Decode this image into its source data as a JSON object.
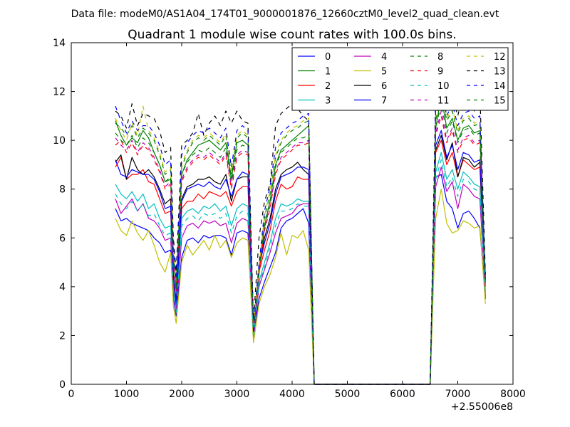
{
  "figure": {
    "suptitle": "Data file: modeM0/AS1A04_174T01_9000001876_12660cztM0_level2_quad_clean.evt"
  },
  "chart_data": {
    "type": "line",
    "title": "Quadrant 1 module wise count rates with 100.0s bins.",
    "xlabel": "",
    "ylabel": "",
    "x_offset_label": "+2.55006e8",
    "xlim": [
      0,
      8000
    ],
    "ylim": [
      0,
      14
    ],
    "xticks": [
      0,
      1000,
      2000,
      3000,
      4000,
      5000,
      6000,
      7000,
      8000
    ],
    "yticks": [
      0,
      2,
      4,
      6,
      8,
      10,
      12,
      14
    ],
    "grid": false,
    "legend": {
      "position": "top-right",
      "columns": 4
    },
    "x": [
      800,
      900,
      1000,
      1100,
      1200,
      1300,
      1400,
      1500,
      1600,
      1700,
      1800,
      1850,
      1900,
      2000,
      2100,
      2200,
      2300,
      2400,
      2500,
      2600,
      2700,
      2800,
      2900,
      3000,
      3100,
      3200,
      3300,
      3400,
      3500,
      3600,
      3700,
      3800,
      3900,
      4000,
      4100,
      4200,
      4300,
      4400,
      6500,
      6600,
      6700,
      6800,
      6900,
      7000,
      7100,
      7200,
      7300,
      7400,
      7500
    ],
    "series": [
      {
        "name": "0",
        "color": "#0000ff",
        "dash": "solid",
        "values": [
          7.2,
          6.7,
          6.8,
          6.6,
          6.5,
          6.4,
          6.3,
          6.0,
          5.8,
          5.4,
          5.5,
          3.5,
          2.8,
          5.2,
          5.9,
          6.0,
          5.8,
          6.1,
          6.0,
          6.1,
          6.1,
          6.0,
          5.3,
          6.2,
          6.3,
          6.2,
          2.0,
          3.5,
          4.2,
          4.8,
          5.4,
          6.4,
          6.7,
          6.8,
          7.0,
          7.2,
          6.6,
          0,
          0,
          8.5,
          8.6,
          7.5,
          7.2,
          6.4,
          7.0,
          7.1,
          6.8,
          6.4,
          3.5
        ]
      },
      {
        "name": "1",
        "color": "#008000",
        "dash": "solid",
        "values": [
          10.8,
          10.2,
          9.8,
          10.1,
          9.9,
          10.4,
          10.1,
          9.5,
          9.0,
          8.3,
          8.4,
          5.2,
          3.9,
          8.6,
          9.2,
          9.5,
          9.8,
          9.9,
          10.0,
          9.8,
          9.6,
          9.9,
          8.4,
          9.9,
          10.0,
          9.8,
          2.3,
          4.5,
          6.5,
          7.5,
          9.0,
          9.6,
          9.8,
          10.0,
          10.2,
          10.4,
          10.6,
          0,
          0,
          10.5,
          11.8,
          10.5,
          10.9,
          10.0,
          10.5,
          10.6,
          10.3,
          10.4,
          4.0
        ]
      },
      {
        "name": "2",
        "color": "#ff0000",
        "dash": "solid",
        "values": [
          8.9,
          9.3,
          8.4,
          8.6,
          8.6,
          8.8,
          8.3,
          8.2,
          7.6,
          7.0,
          7.1,
          4.2,
          3.2,
          7.2,
          7.5,
          7.5,
          7.8,
          7.6,
          7.9,
          7.8,
          7.7,
          7.9,
          7.3,
          7.9,
          8.1,
          8.1,
          2.1,
          4.6,
          5.5,
          6.3,
          7.5,
          8.2,
          8.0,
          8.1,
          8.5,
          8.4,
          8.4,
          0,
          0,
          9.5,
          10.0,
          9.0,
          9.5,
          8.5,
          9.2,
          9.0,
          8.8,
          8.9,
          4.2
        ]
      },
      {
        "name": "3",
        "color": "#00bfbf",
        "dash": "solid",
        "values": [
          8.2,
          7.8,
          7.6,
          7.9,
          7.5,
          7.8,
          7.2,
          7.4,
          6.8,
          6.4,
          6.5,
          3.9,
          3.0,
          6.8,
          7.1,
          7.2,
          7.0,
          7.3,
          7.2,
          7.4,
          7.1,
          7.3,
          6.5,
          7.2,
          7.4,
          7.3,
          2.0,
          4.2,
          5.0,
          5.8,
          6.8,
          7.4,
          7.3,
          7.4,
          7.6,
          7.5,
          7.5,
          0,
          0,
          8.7,
          9.5,
          8.4,
          8.8,
          8.0,
          8.7,
          8.5,
          8.2,
          8.1,
          3.8
        ]
      },
      {
        "name": "4",
        "color": "#bf00bf",
        "dash": "solid",
        "values": [
          7.6,
          7.0,
          7.3,
          7.6,
          7.1,
          7.4,
          6.8,
          6.7,
          6.4,
          5.9,
          6.0,
          3.6,
          2.9,
          6.0,
          6.5,
          6.6,
          6.4,
          6.7,
          6.6,
          6.7,
          6.5,
          6.6,
          5.8,
          6.6,
          6.8,
          6.7,
          1.9,
          4.0,
          4.7,
          5.4,
          6.2,
          6.8,
          6.9,
          7.0,
          7.3,
          7.4,
          7.4,
          0,
          0,
          8.1,
          8.9,
          7.9,
          8.3,
          7.2,
          8.2,
          8.0,
          7.7,
          7.6,
          3.6
        ]
      },
      {
        "name": "5",
        "color": "#bfbf00",
        "dash": "solid",
        "values": [
          6.8,
          6.3,
          6.1,
          6.7,
          6.2,
          5.9,
          6.3,
          5.7,
          5.0,
          4.6,
          5.4,
          3.2,
          2.5,
          5.0,
          5.7,
          5.3,
          5.6,
          5.9,
          5.5,
          6.1,
          5.6,
          5.9,
          5.2,
          5.8,
          6.0,
          5.9,
          1.7,
          3.3,
          4.0,
          4.5,
          5.2,
          6.2,
          5.3,
          6.1,
          6.0,
          6.3,
          5.5,
          0,
          0,
          6.8,
          8.0,
          6.6,
          6.2,
          6.3,
          6.7,
          6.6,
          6.4,
          6.5,
          3.3
        ]
      },
      {
        "name": "6",
        "color": "#000000",
        "dash": "solid",
        "values": [
          9.1,
          9.4,
          8.4,
          9.3,
          8.8,
          8.6,
          8.8,
          8.5,
          8.0,
          7.4,
          7.6,
          4.5,
          3.4,
          7.6,
          8.1,
          8.2,
          8.4,
          8.4,
          8.5,
          8.3,
          8.2,
          8.6,
          7.5,
          8.4,
          8.5,
          8.5,
          2.2,
          4.9,
          6.0,
          6.8,
          8.0,
          8.6,
          8.8,
          8.9,
          9.1,
          8.8,
          8.6,
          0,
          0,
          9.6,
          10.2,
          9.2,
          9.9,
          8.5,
          9.3,
          9.2,
          8.9,
          9.1,
          4.3
        ]
      },
      {
        "name": "7",
        "color": "#0000ff",
        "dash": "solid",
        "values": [
          9.2,
          8.6,
          8.5,
          8.8,
          8.7,
          8.6,
          8.6,
          8.4,
          7.9,
          7.2,
          7.3,
          4.4,
          3.3,
          7.5,
          8.0,
          8.1,
          8.2,
          8.1,
          8.3,
          8.1,
          8.0,
          8.4,
          7.7,
          8.4,
          8.7,
          8.6,
          2.1,
          4.8,
          5.8,
          6.6,
          7.8,
          8.5,
          8.6,
          8.7,
          8.9,
          8.9,
          8.8,
          0,
          0,
          9.8,
          10.4,
          9.3,
          9.8,
          8.8,
          9.5,
          9.4,
          9.1,
          9.2,
          4.4
        ]
      },
      {
        "name": "8",
        "color": "#008000",
        "dash": "dashed",
        "values": [
          10.7,
          10.5,
          10.2,
          10.6,
          10.1,
          10.5,
          10.3,
          10.0,
          9.4,
          8.6,
          8.8,
          5.4,
          4.1,
          8.9,
          9.5,
          9.9,
          10.1,
          10.0,
          10.2,
          10.0,
          9.8,
          10.2,
          8.6,
          10.1,
          10.3,
          10.1,
          2.4,
          4.7,
          6.8,
          7.8,
          9.3,
          9.9,
          10.2,
          10.4,
          10.5,
          10.7,
          10.8,
          0,
          0,
          10.8,
          12.0,
          10.8,
          11.2,
          10.3,
          10.8,
          10.9,
          10.6,
          10.7,
          4.1
        ]
      },
      {
        "name": "9",
        "color": "#ff0000",
        "dash": "dashed",
        "values": [
          9.8,
          10.0,
          9.5,
          9.9,
          9.4,
          9.8,
          9.6,
          9.2,
          8.7,
          8.0,
          8.2,
          5.0,
          3.8,
          8.3,
          8.8,
          9.1,
          9.3,
          9.2,
          9.4,
          9.2,
          9.0,
          9.4,
          8.0,
          9.3,
          9.5,
          9.4,
          2.3,
          4.6,
          6.3,
          7.2,
          8.6,
          9.2,
          9.4,
          9.6,
          9.8,
          9.8,
          9.9,
          0,
          0,
          10.2,
          11.0,
          9.9,
          10.4,
          9.5,
          10.0,
          10.1,
          9.8,
          9.9,
          4.2
        ]
      },
      {
        "name": "10",
        "color": "#00bfbf",
        "dash": "dashed",
        "values": [
          7.8,
          7.4,
          7.2,
          7.5,
          7.1,
          7.4,
          6.9,
          7.0,
          6.5,
          6.1,
          6.2,
          3.8,
          2.9,
          6.5,
          6.8,
          6.9,
          6.7,
          7.0,
          6.9,
          7.0,
          6.8,
          7.0,
          6.2,
          6.9,
          7.1,
          7.0,
          1.9,
          4.1,
          4.8,
          5.6,
          6.5,
          7.1,
          7.1,
          7.2,
          7.4,
          7.3,
          7.3,
          0,
          0,
          8.4,
          9.2,
          8.1,
          8.5,
          7.7,
          8.4,
          8.3,
          8.0,
          7.9,
          3.7
        ]
      },
      {
        "name": "11",
        "color": "#bf00bf",
        "dash": "dashed",
        "values": [
          10.1,
          9.8,
          9.6,
          10.0,
          9.5,
          9.9,
          9.7,
          9.3,
          8.8,
          8.1,
          8.3,
          5.1,
          3.8,
          8.4,
          8.9,
          9.2,
          9.4,
          9.3,
          9.5,
          9.3,
          9.1,
          9.5,
          8.1,
          9.4,
          9.6,
          9.5,
          2.3,
          4.6,
          6.4,
          7.3,
          8.7,
          9.3,
          9.5,
          9.7,
          9.9,
          9.9,
          10.0,
          0,
          0,
          10.3,
          11.2,
          10.0,
          10.5,
          9.6,
          10.1,
          10.2,
          9.9,
          10.0,
          4.2
        ]
      },
      {
        "name": "12",
        "color": "#bfbf00",
        "dash": "dashed",
        "values": [
          10.9,
          10.4,
          10.0,
          10.7,
          10.2,
          11.4,
          10.4,
          10.1,
          9.5,
          8.7,
          8.9,
          5.5,
          4.2,
          9.0,
          9.6,
          10.0,
          10.2,
          10.1,
          10.3,
          10.1,
          9.9,
          10.3,
          8.7,
          10.2,
          10.4,
          10.2,
          2.4,
          4.8,
          6.9,
          7.9,
          9.4,
          10.0,
          10.3,
          10.5,
          10.6,
          10.8,
          10.9,
          0,
          0,
          11.0,
          12.1,
          10.9,
          11.3,
          10.4,
          10.9,
          11.0,
          10.7,
          10.8,
          4.1
        ]
      },
      {
        "name": "13",
        "color": "#000000",
        "dash": "dashed",
        "values": [
          11.2,
          11.0,
          10.5,
          11.5,
          10.6,
          11.1,
          11.0,
          10.9,
          10.4,
          9.5,
          9.7,
          6.0,
          4.6,
          9.8,
          10.0,
          10.3,
          11.1,
          10.2,
          10.7,
          11.0,
          10.6,
          11.2,
          10.7,
          11.2,
          10.8,
          10.7,
          2.6,
          6.0,
          7.5,
          8.2,
          10.6,
          11.1,
          11.3,
          11.5,
          11.3,
          11.0,
          10.8,
          0,
          0,
          12.0,
          12.3,
          11.2,
          11.8,
          11.0,
          12.0,
          11.6,
          11.2,
          12.0,
          4.5
        ]
      },
      {
        "name": "14",
        "color": "#0000ff",
        "dash": "dashed",
        "values": [
          11.4,
          10.8,
          10.3,
          10.8,
          10.4,
          10.6,
          10.6,
          10.3,
          9.8,
          9.0,
          9.2,
          5.7,
          4.3,
          9.4,
          9.9,
          10.2,
          10.4,
          10.3,
          10.5,
          10.3,
          10.1,
          10.5,
          8.9,
          10.4,
          10.6,
          10.4,
          2.5,
          4.9,
          7.1,
          8.1,
          9.7,
          10.3,
          10.5,
          10.7,
          10.8,
          11.0,
          11.1,
          0,
          0,
          11.3,
          12.2,
          11.0,
          11.5,
          10.6,
          11.1,
          11.2,
          10.9,
          11.0,
          4.3
        ]
      },
      {
        "name": "15",
        "color": "#008000",
        "dash": "dashed",
        "values": [
          10.3,
          10.0,
          9.8,
          10.2,
          9.7,
          10.1,
          9.9,
          9.5,
          9.0,
          8.3,
          8.5,
          5.2,
          3.9,
          8.6,
          9.1,
          9.4,
          9.6,
          9.5,
          9.7,
          9.5,
          9.3,
          9.7,
          8.3,
          9.6,
          9.8,
          9.7,
          2.3,
          4.6,
          6.6,
          7.5,
          8.9,
          9.5,
          9.7,
          9.9,
          10.1,
          10.1,
          10.2,
          0,
          0,
          10.5,
          11.5,
          10.3,
          10.8,
          9.9,
          10.4,
          10.5,
          10.2,
          10.3,
          4.1
        ]
      }
    ]
  }
}
